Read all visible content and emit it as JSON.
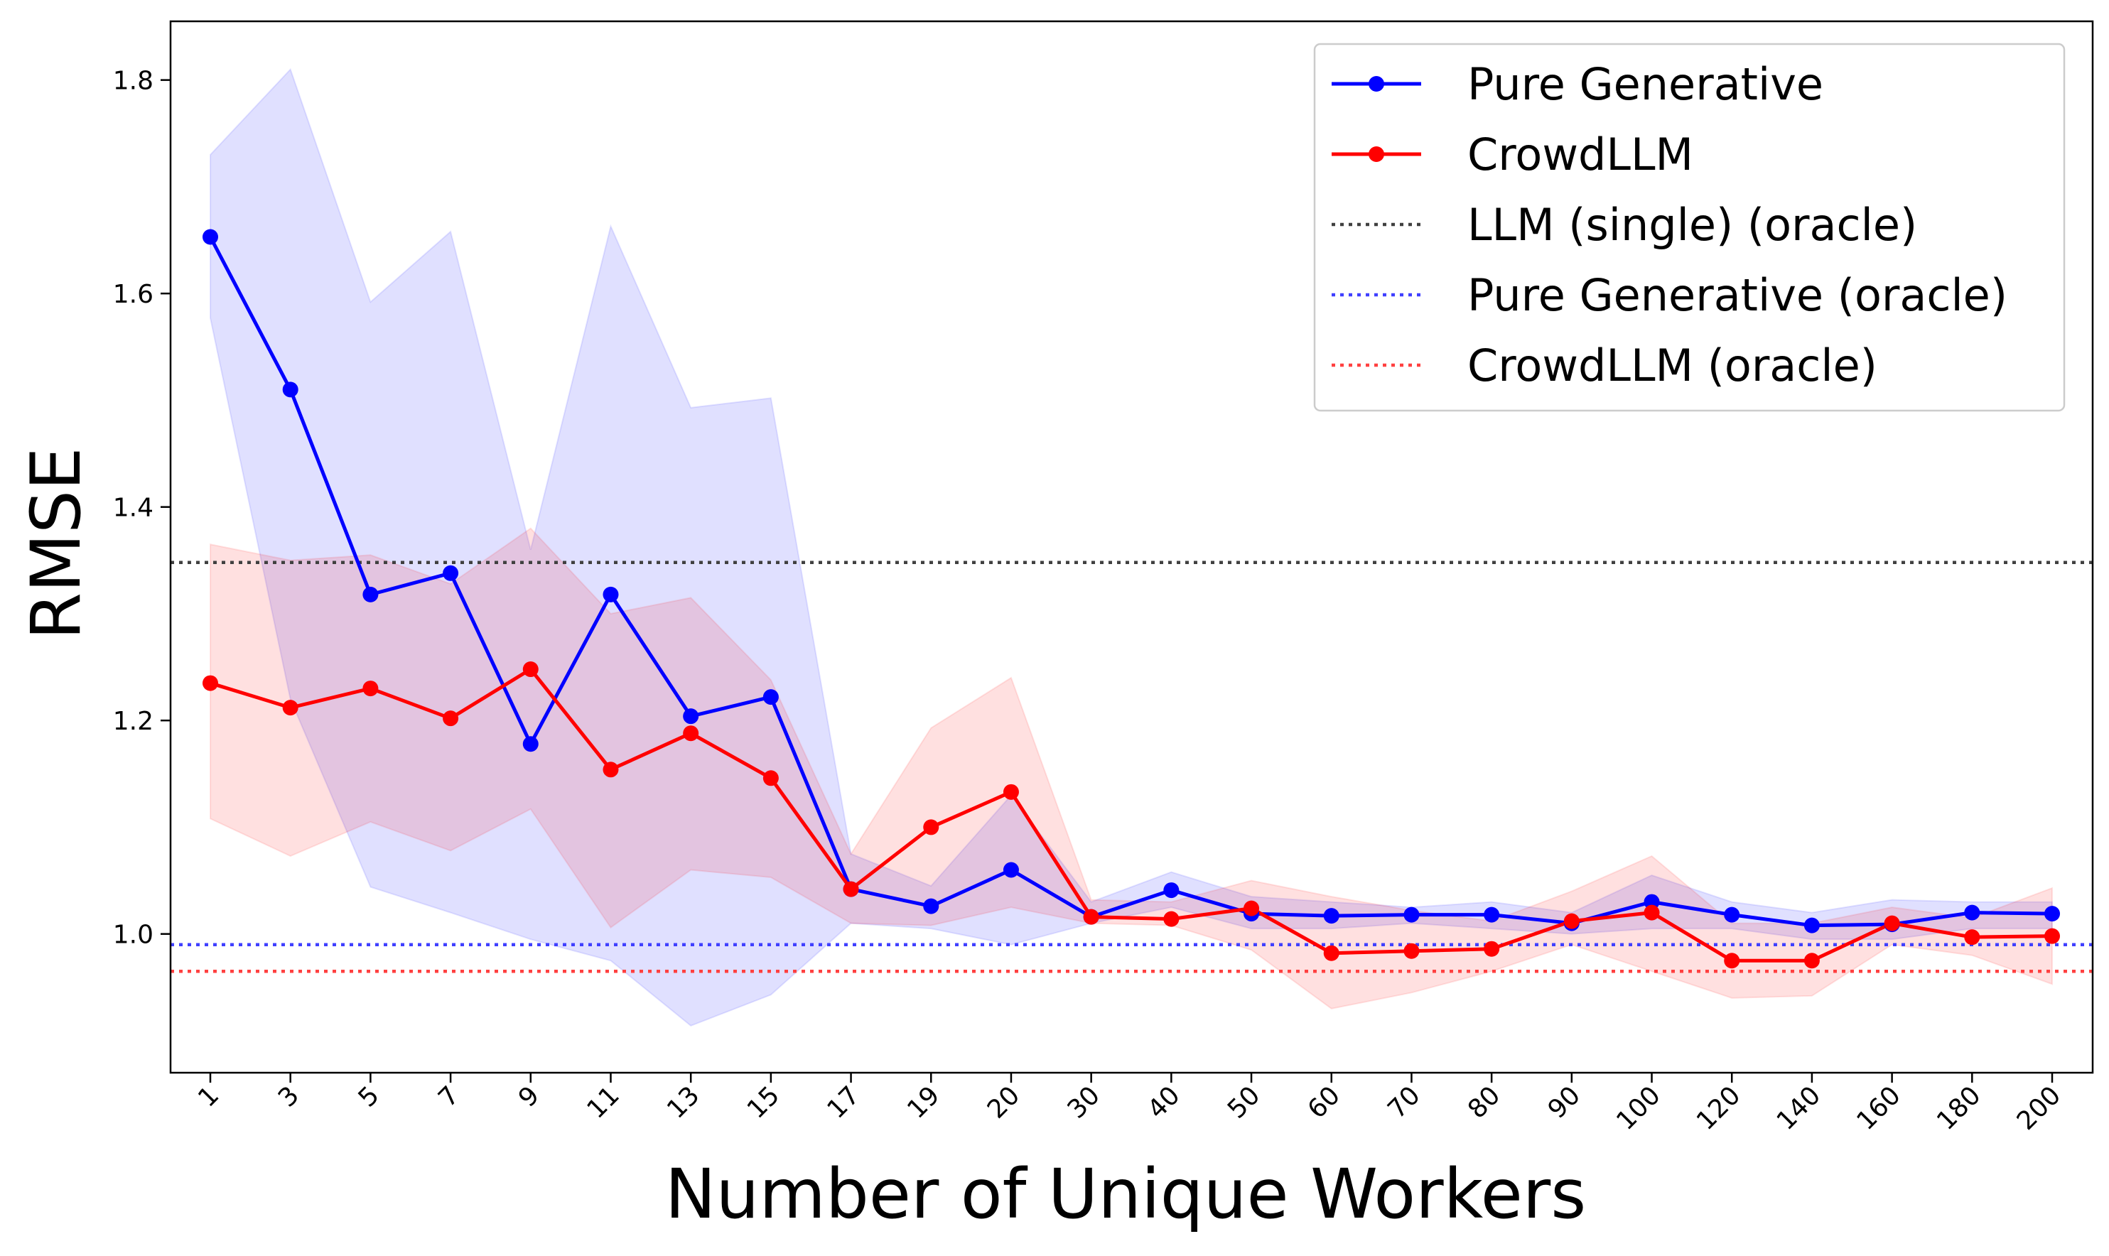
{
  "chart_data": {
    "type": "line",
    "title": "",
    "xlabel": "Number of Unique Workers",
    "ylabel": "RMSE",
    "categories": [
      "1",
      "3",
      "5",
      "7",
      "9",
      "11",
      "13",
      "15",
      "17",
      "19",
      "20",
      "30",
      "40",
      "50",
      "60",
      "70",
      "80",
      "90",
      "100",
      "120",
      "140",
      "160",
      "180",
      "200"
    ],
    "ylim": [
      0.87,
      1.855
    ],
    "yticks": [
      "1.0",
      "1.2",
      "1.4",
      "1.6",
      "1.8"
    ],
    "grid": false,
    "legend_position": "top-right",
    "series": [
      {
        "name": "Pure Generative",
        "color": "#0000ff",
        "marker": "circle",
        "values": [
          1.653,
          1.51,
          1.318,
          1.338,
          1.178,
          1.318,
          1.204,
          1.222,
          1.042,
          1.026,
          1.06,
          1.016,
          1.041,
          1.019,
          1.017,
          1.018,
          1.018,
          1.01,
          1.03,
          1.018,
          1.008,
          1.009,
          1.02,
          1.019
        ],
        "lower": [
          1.577,
          1.22,
          1.044,
          1.02,
          0.995,
          0.975,
          0.914,
          0.943,
          1.01,
          1.005,
          0.99,
          1.01,
          1.025,
          1.005,
          1.005,
          1.01,
          1.005,
          1.0,
          1.005,
          1.005,
          0.995,
          0.995,
          1.005,
          1.005
        ],
        "upper": [
          1.73,
          1.81,
          1.592,
          1.658,
          1.36,
          1.663,
          1.493,
          1.502,
          1.075,
          1.045,
          1.13,
          1.03,
          1.058,
          1.035,
          1.03,
          1.025,
          1.03,
          1.02,
          1.055,
          1.03,
          1.02,
          1.032,
          1.03,
          1.03
        ]
      },
      {
        "name": "CrowdLLM",
        "color": "#ff0000",
        "marker": "circle",
        "values": [
          1.235,
          1.212,
          1.23,
          1.202,
          1.248,
          1.154,
          1.188,
          1.146,
          1.042,
          1.1,
          1.133,
          1.016,
          1.014,
          1.024,
          0.982,
          0.984,
          0.986,
          1.012,
          1.02,
          0.975,
          0.975,
          1.01,
          0.997,
          0.998
        ],
        "lower": [
          1.108,
          1.073,
          1.105,
          1.078,
          1.117,
          1.006,
          1.06,
          1.053,
          1.01,
          1.008,
          1.025,
          1.01,
          1.008,
          0.985,
          0.93,
          0.945,
          0.965,
          0.99,
          0.965,
          0.94,
          0.942,
          0.99,
          0.98,
          0.953
        ],
        "upper": [
          1.365,
          1.35,
          1.355,
          1.328,
          1.38,
          1.3,
          1.315,
          1.238,
          1.075,
          1.193,
          1.24,
          1.032,
          1.03,
          1.05,
          1.035,
          1.022,
          1.012,
          1.04,
          1.073,
          1.01,
          1.01,
          1.025,
          1.015,
          1.043
        ]
      }
    ],
    "reference_lines": [
      {
        "name": "LLM (single) (oracle)",
        "color": "#404040",
        "value": 1.348
      },
      {
        "name": "Pure Generative (oracle)",
        "color": "#4040ff",
        "value": 0.99
      },
      {
        "name": "CrowdLLM (oracle)",
        "color": "#ff4040",
        "value": 0.965
      }
    ]
  }
}
